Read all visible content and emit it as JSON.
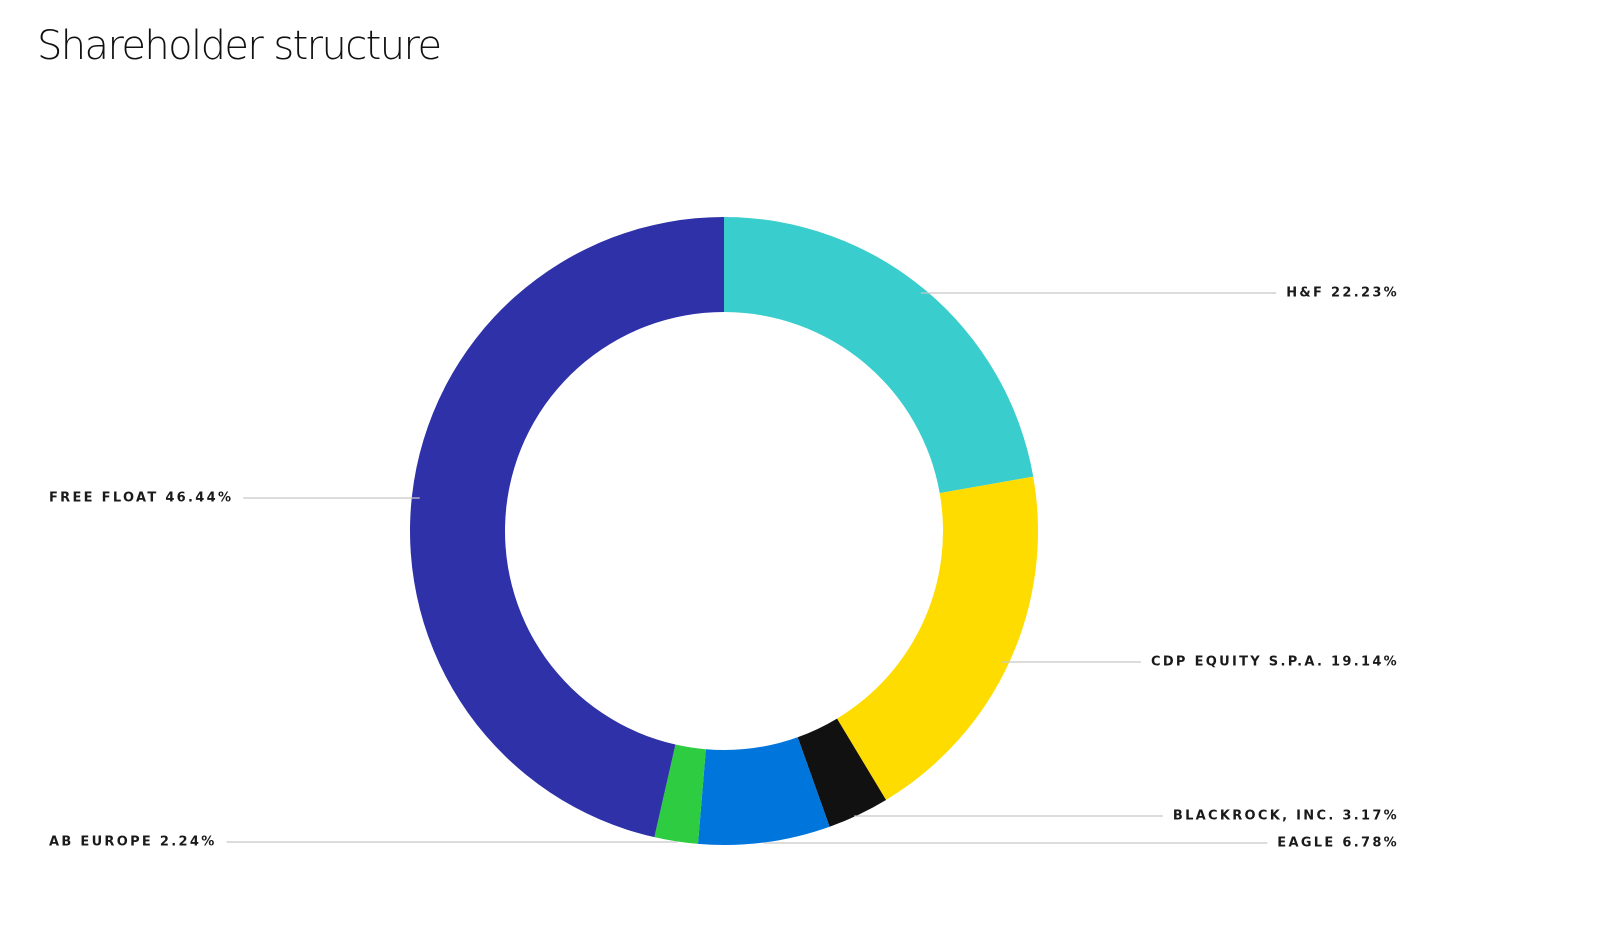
{
  "page": {
    "title": "Shareholder structure"
  },
  "chart_data": {
    "type": "pie",
    "title": "Shareholder structure",
    "donut": true,
    "start": "top",
    "direction": "clockwise",
    "slices": [
      {
        "name": "H&F",
        "value": 22.23,
        "label": "H&F 22.23%",
        "color": "#3ACDCD",
        "label_side": "right"
      },
      {
        "name": "CDP EQUITY S.P.A.",
        "value": 19.14,
        "label": "CDP EQUITY S.P.A. 19.14%",
        "color": "#FFDC00",
        "label_side": "right"
      },
      {
        "name": "BLACKROCK, INC.",
        "value": 3.17,
        "label": "BLACKROCK, INC. 3.17%",
        "color": "#111111",
        "label_side": "right"
      },
      {
        "name": "EAGLE",
        "value": 6.78,
        "label": "EAGLE 6.78%",
        "color": "#0075DC",
        "label_side": "right"
      },
      {
        "name": "AB EUROPE",
        "value": 2.24,
        "label": "AB EUROPE 2.24%",
        "color": "#2ECC40",
        "label_side": "left"
      },
      {
        "name": "FREE FLOAT",
        "value": 46.44,
        "label": "FREE FLOAT 46.44%",
        "color": "#2E31A8",
        "label_side": "left"
      }
    ]
  }
}
